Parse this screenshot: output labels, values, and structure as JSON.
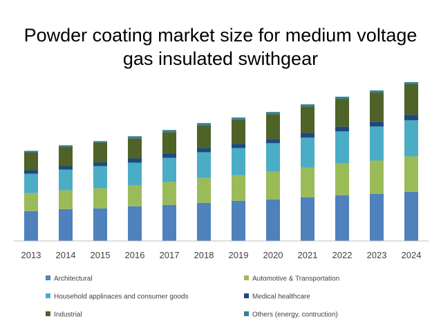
{
  "chart_data": {
    "type": "bar",
    "stacked": true,
    "title_lines": [
      "Powder coating market size for medium voltage",
      "gas insulated swithgear"
    ],
    "categories": [
      "2013",
      "2014",
      "2015",
      "2016",
      "2017",
      "2018",
      "2019",
      "2020",
      "2021",
      "2022",
      "2023",
      "2024"
    ],
    "series": [
      {
        "name": "Architectural",
        "color": "#4f81bd",
        "values": [
          43,
          46,
          47,
          50,
          52,
          55,
          58,
          60,
          63,
          66,
          68,
          71
        ]
      },
      {
        "name": "Automotive & Transportation",
        "color": "#9bbb59",
        "values": [
          26,
          27,
          29,
          30,
          33,
          36,
          37,
          40,
          43,
          46,
          48,
          51
        ]
      },
      {
        "name": "Household applinaces and consumer goods",
        "color": "#4bacc6",
        "values": [
          28,
          30,
          32,
          33,
          35,
          37,
          39,
          41,
          43,
          46,
          49,
          52
        ]
      },
      {
        "name": "Medical healthcare",
        "color": "#1f497d",
        "values": [
          5,
          5,
          5,
          6,
          6,
          6,
          6,
          6,
          7,
          7,
          7,
          8
        ]
      },
      {
        "name": "Industrial",
        "color": "#4f6228",
        "values": [
          26,
          28,
          29,
          29,
          31,
          33,
          35,
          36,
          38,
          40,
          42,
          44
        ]
      },
      {
        "name": "Others (energy, contruction)",
        "color": "#31849b",
        "values": [
          2,
          2,
          2,
          3,
          3,
          3,
          3,
          3,
          3,
          3,
          3,
          3
        ]
      }
    ],
    "ylim": [
      0,
      228
    ],
    "xlabel": "",
    "ylabel": "",
    "grid": false,
    "legend_position": "bottom"
  }
}
